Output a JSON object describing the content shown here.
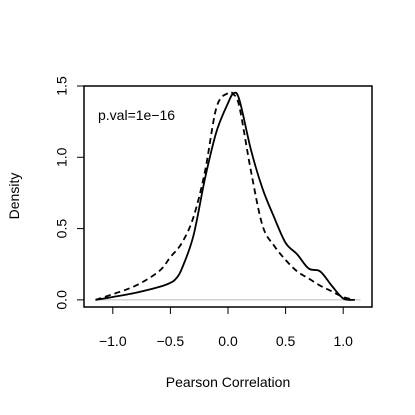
{
  "chart_data": {
    "type": "line",
    "xlabel": "Pearson Correlation",
    "ylabel": "Density",
    "xlim": [
      -1.25,
      1.25
    ],
    "ylim": [
      -0.05,
      1.5
    ],
    "x_ticks": [
      -1.0,
      -0.5,
      0.0,
      0.5,
      1.0
    ],
    "x_tick_labels": [
      "−1.0",
      "−0.5",
      "0.0",
      "0.5",
      "1.0"
    ],
    "y_ticks": [
      0.0,
      0.5,
      1.0,
      1.5
    ],
    "y_tick_labels": [
      "0.0",
      "0.5",
      "1.0",
      "1.5"
    ],
    "annotation": "p.val=1e−16",
    "grid": false,
    "baseline_color": "#bbbbbb",
    "series": [
      {
        "style": "solid",
        "color": "#000000",
        "x": [
          -1.15,
          -1.0,
          -0.8,
          -0.6,
          -0.5,
          -0.45,
          -0.4,
          -0.3,
          -0.2,
          -0.1,
          0.0,
          0.05,
          0.1,
          0.2,
          0.3,
          0.4,
          0.5,
          0.6,
          0.7,
          0.8,
          0.9,
          1.0,
          1.1
        ],
        "y": [
          0.0,
          0.02,
          0.05,
          0.09,
          0.12,
          0.15,
          0.22,
          0.45,
          0.85,
          1.18,
          1.38,
          1.45,
          1.4,
          1.05,
          0.78,
          0.58,
          0.4,
          0.32,
          0.22,
          0.2,
          0.1,
          0.01,
          0.0
        ]
      },
      {
        "style": "dashed",
        "color": "#000000",
        "x": [
          -1.15,
          -1.0,
          -0.8,
          -0.6,
          -0.5,
          -0.4,
          -0.3,
          -0.2,
          -0.1,
          0.0,
          0.05,
          0.1,
          0.2,
          0.3,
          0.4,
          0.5,
          0.6,
          0.7,
          0.8,
          0.9,
          1.0,
          1.1
        ],
        "y": [
          0.0,
          0.04,
          0.1,
          0.2,
          0.3,
          0.4,
          0.58,
          0.9,
          1.35,
          1.45,
          1.44,
          1.35,
          0.9,
          0.52,
          0.38,
          0.28,
          0.2,
          0.15,
          0.1,
          0.06,
          0.02,
          0.0
        ]
      }
    ]
  }
}
